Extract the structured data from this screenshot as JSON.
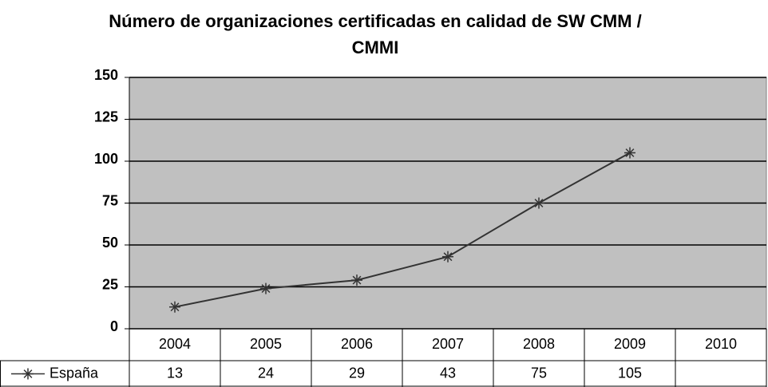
{
  "chart_data": {
    "type": "line",
    "title": "Número de organizaciones certificadas en calidad de SW CMM / CMMI",
    "categories": [
      "2004",
      "2005",
      "2006",
      "2007",
      "2008",
      "2009",
      "2010"
    ],
    "series": [
      {
        "name": "España",
        "color": "#333333",
        "values": [
          13,
          24,
          29,
          43,
          75,
          105,
          null
        ]
      }
    ],
    "ylim": [
      0,
      150
    ],
    "yticks": [
      0,
      25,
      50,
      75,
      100,
      125,
      150
    ],
    "grid": true,
    "plot_background": "#c0c0c0",
    "data_table": true
  }
}
